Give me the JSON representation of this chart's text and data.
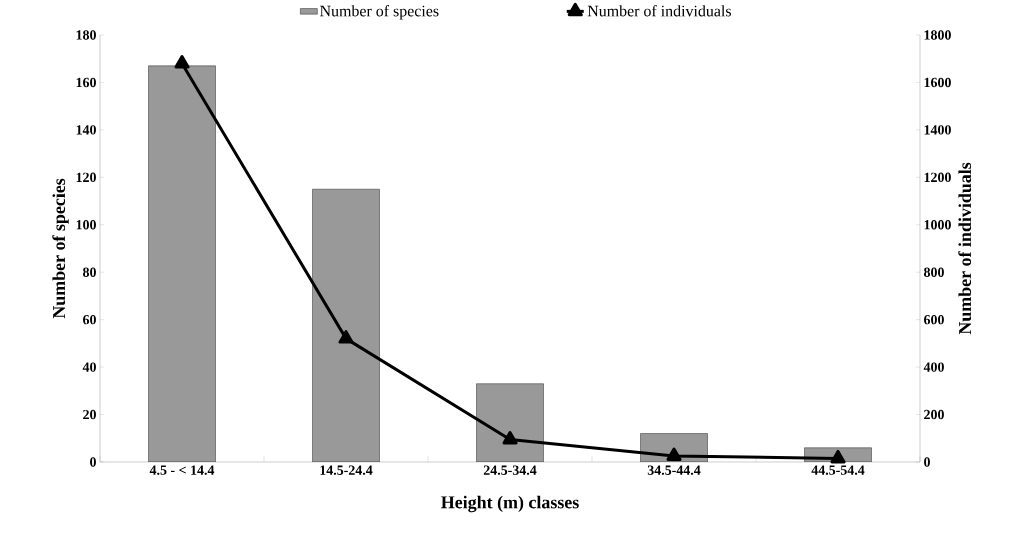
{
  "chart_data": {
    "type": "bar",
    "xlabel": "Height (m) classes",
    "ylabel": "Number of species",
    "y2label": "Number of individuals",
    "categories": [
      "4.5 - < 14.4",
      "14.5-24.4",
      "24.5-34.4",
      "34.5-44.4",
      "44.5-54.4"
    ],
    "series": [
      {
        "name": "Number of species",
        "color": "#999999",
        "values": [
          167,
          115,
          33,
          12,
          6
        ]
      },
      {
        "name": "Number of individuals",
        "type": "line",
        "axis": "y2",
        "color": "#000000",
        "marker": "triangle",
        "values": [
          1680,
          520,
          95,
          25,
          15
        ]
      }
    ],
    "ylim": [
      0,
      180
    ],
    "yticks": [
      0,
      20,
      40,
      60,
      80,
      100,
      120,
      140,
      160,
      180
    ],
    "y2lim": [
      0,
      1800
    ],
    "y2ticks": [
      0,
      200,
      400,
      600,
      800,
      1000,
      1200,
      1400,
      1600,
      1800
    ],
    "legend": "top"
  }
}
